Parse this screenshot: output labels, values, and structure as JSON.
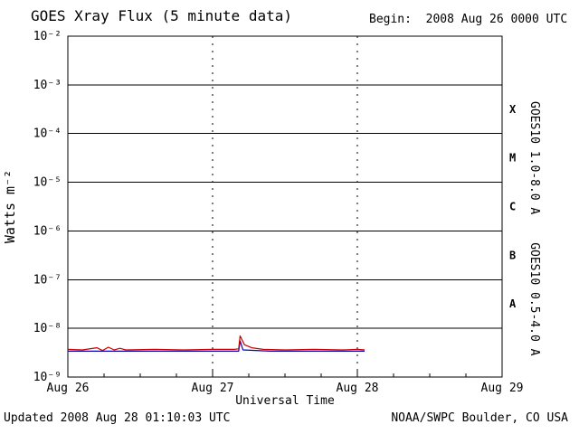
{
  "header": {
    "title": "GOES Xray Flux (5 minute data)",
    "begin_label": "Begin:  2008 Aug 26 0000 UTC"
  },
  "footer": {
    "updated": "Updated 2008 Aug 28 01:10:03 UTC",
    "credit": "NOAA/SWPC Boulder, CO USA"
  },
  "chart_data": {
    "type": "line",
    "title": "GOES Xray Flux (5 minute data)",
    "xlabel": "Universal Time",
    "ylabel": "Watts m⁻²",
    "y_scale": "log",
    "ylim_exp": [
      -9,
      -2
    ],
    "x_span_days": 3,
    "grid": "horizontal solid per decade, dashed vertical at day boundaries",
    "x_ticks": [
      {
        "day": 0,
        "label": "Aug 26"
      },
      {
        "day": 1,
        "label": "Aug 27"
      },
      {
        "day": 2,
        "label": "Aug 28"
      },
      {
        "day": 3,
        "label": "Aug 29"
      }
    ],
    "y_ticks": [
      {
        "exp": -2,
        "label": "10⁻²"
      },
      {
        "exp": -3,
        "label": "10⁻³"
      },
      {
        "exp": -4,
        "label": "10⁻⁴"
      },
      {
        "exp": -5,
        "label": "10⁻⁵"
      },
      {
        "exp": -6,
        "label": "10⁻⁶"
      },
      {
        "exp": -7,
        "label": "10⁻⁷"
      },
      {
        "exp": -8,
        "label": "10⁻⁸"
      },
      {
        "exp": -9,
        "label": "10⁻⁹"
      }
    ],
    "day_gridlines": [
      1,
      2
    ],
    "flare_classes": [
      {
        "label": "X",
        "exp_mid": -3.5
      },
      {
        "label": "M",
        "exp_mid": -4.5
      },
      {
        "label": "C",
        "exp_mid": -5.5
      },
      {
        "label": "B",
        "exp_mid": -6.5
      },
      {
        "label": "A",
        "exp_mid": -7.5
      }
    ],
    "series": [
      {
        "name": "GOES10 0.5-4.0 A",
        "color": "#0000bb",
        "points": [
          [
            0,
            3.4e-09
          ],
          [
            0.25,
            3.4e-09
          ],
          [
            0.5,
            3.4e-09
          ],
          [
            0.75,
            3.4e-09
          ],
          [
            1.0,
            3.4e-09
          ],
          [
            1.15,
            3.4e-09
          ],
          [
            1.18,
            3.4e-09
          ],
          [
            1.19,
            5.5e-09
          ],
          [
            1.21,
            3.6e-09
          ],
          [
            1.4,
            3.4e-09
          ],
          [
            1.6,
            3.4e-09
          ],
          [
            1.8,
            3.4e-09
          ],
          [
            2.0,
            3.4e-09
          ],
          [
            2.05,
            3.4e-09
          ]
        ]
      },
      {
        "name": "GOES10 1.0-8.0 A",
        "color": "#cc0000",
        "points": [
          [
            0,
            3.7e-09
          ],
          [
            0.1,
            3.6e-09
          ],
          [
            0.2,
            4e-09
          ],
          [
            0.24,
            3.5e-09
          ],
          [
            0.28,
            4.1e-09
          ],
          [
            0.32,
            3.6e-09
          ],
          [
            0.36,
            3.9e-09
          ],
          [
            0.4,
            3.6e-09
          ],
          [
            0.6,
            3.7e-09
          ],
          [
            0.8,
            3.6e-09
          ],
          [
            1.0,
            3.7e-09
          ],
          [
            1.15,
            3.7e-09
          ],
          [
            1.18,
            3.8e-09
          ],
          [
            1.19,
            7e-09
          ],
          [
            1.22,
            4.6e-09
          ],
          [
            1.27,
            4e-09
          ],
          [
            1.35,
            3.7e-09
          ],
          [
            1.5,
            3.6e-09
          ],
          [
            1.7,
            3.7e-09
          ],
          [
            1.9,
            3.6e-09
          ],
          [
            2.0,
            3.7e-09
          ],
          [
            2.05,
            3.6e-09
          ]
        ]
      }
    ],
    "right_labels": [
      {
        "text": "GOES10 1.0-8.0 A",
        "color": "#cc0000",
        "center_y_exp": -4.5
      },
      {
        "text": "GOES10 0.5-4.0 A",
        "color": "#0000bb",
        "center_y_exp": -7.4
      }
    ]
  }
}
